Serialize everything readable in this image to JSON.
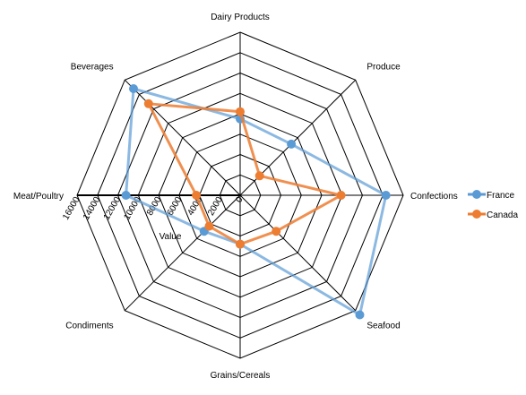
{
  "chart_data": {
    "type": "radar",
    "categories": [
      "Dairy Products",
      "Produce",
      "Confections",
      "Seafood",
      "Grains/Cereals",
      "Condiments",
      "Meat/Poultry",
      "Beverages"
    ],
    "axis_title": "Value",
    "range": [
      0,
      16000
    ],
    "ticks": [
      "0",
      "2000",
      "4000",
      "6000",
      "8000",
      "10000",
      "12000",
      "14000",
      "16000"
    ],
    "grid": true,
    "legend_position": "right",
    "series": [
      {
        "name": "France",
        "color": "#5b9bd5",
        "values": [
          7500,
          7100,
          14300,
          16600,
          4800,
          5000,
          11200,
          14800
        ]
      },
      {
        "name": "Canada",
        "color": "#ed7d31",
        "values": [
          8200,
          2700,
          9900,
          5000,
          4800,
          4300,
          4300,
          12700
        ]
      }
    ]
  }
}
